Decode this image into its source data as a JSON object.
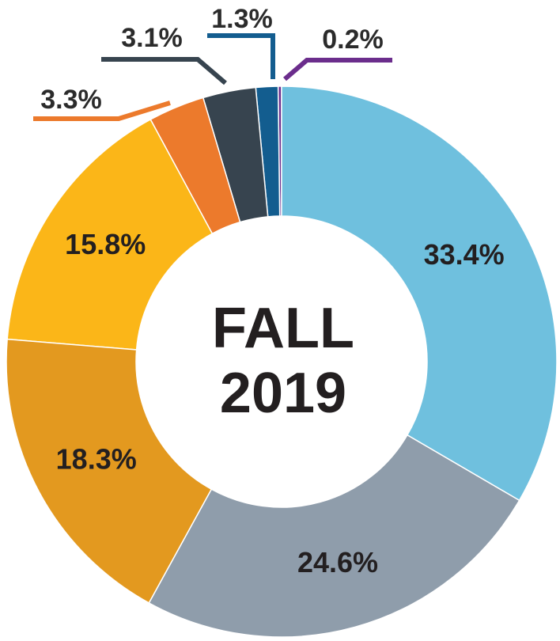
{
  "chart_data": {
    "type": "donut",
    "center_text": [
      "FALL",
      "2019"
    ],
    "values": [
      33.4,
      24.6,
      18.3,
      15.8,
      3.3,
      3.1,
      1.3,
      0.2
    ],
    "value_labels": [
      "33.4%",
      "24.6%",
      "18.3%",
      "15.8%",
      "3.3%",
      "3.1%",
      "1.3%",
      "0.2%"
    ],
    "colors": [
      "#6fc0de",
      "#8f9dab",
      "#e3991f",
      "#fbb618",
      "#ec7a2c",
      "#37444f",
      "#135d8f",
      "#6b2d8c"
    ]
  }
}
